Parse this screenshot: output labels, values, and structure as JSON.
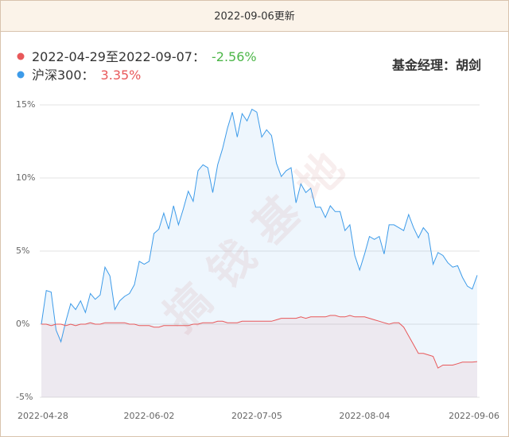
{
  "header": "2022-09-06更新",
  "chart_data": {
    "type": "line",
    "annotations": [
      "基金经理：胡剑",
      "搞钱基地"
    ],
    "categories": [
      "2022-04-28",
      null,
      null,
      null,
      null,
      null,
      null,
      null,
      null,
      null,
      null,
      null,
      null,
      null,
      null,
      null,
      null,
      null,
      null,
      null,
      null,
      null,
      "2022-06-02",
      null,
      null,
      null,
      null,
      null,
      null,
      null,
      null,
      null,
      null,
      null,
      null,
      null,
      null,
      null,
      null,
      null,
      null,
      null,
      null,
      null,
      "2022-07-05",
      null,
      null,
      null,
      null,
      null,
      null,
      null,
      null,
      null,
      null,
      null,
      null,
      null,
      null,
      null,
      null,
      null,
      null,
      null,
      null,
      null,
      "2022-08-04",
      null,
      null,
      null,
      null,
      null,
      null,
      null,
      null,
      null,
      null,
      null,
      null,
      null,
      null,
      null,
      null,
      null,
      null,
      null,
      null,
      null,
      null,
      "2022-09-06"
    ],
    "series": [
      {
        "name": "2022-04-29至2022-09-07：",
        "color": "#e8585a",
        "fill": "rgba(232,88,90,0.08)",
        "summary": {
          "value": -2.56,
          "label": "-2.56%"
        },
        "summary_color": "#4cb648",
        "values": [
          0,
          0,
          -0.1,
          0,
          0,
          -0.1,
          0,
          -0.1,
          0,
          0,
          0.1,
          0,
          0,
          0.1,
          0.1,
          0.1,
          0.1,
          0.1,
          0,
          0,
          -0.1,
          -0.1,
          -0.1,
          -0.2,
          -0.2,
          -0.1,
          -0.1,
          -0.1,
          -0.1,
          -0.1,
          -0.1,
          0,
          0,
          0.1,
          0.1,
          0.1,
          0.2,
          0.2,
          0.1,
          0.1,
          0.1,
          0.2,
          0.2,
          0.2,
          0.2,
          0.2,
          0.2,
          0.2,
          0.3,
          0.4,
          0.4,
          0.4,
          0.4,
          0.5,
          0.4,
          0.5,
          0.5,
          0.5,
          0.5,
          0.6,
          0.6,
          0.5,
          0.5,
          0.6,
          0.5,
          0.5,
          0.5,
          0.4,
          0.3,
          0.2,
          0.1,
          0,
          0.1,
          0.1,
          -0.2,
          -0.8,
          -1.4,
          -2.0,
          -2.0,
          -2.1,
          -2.2,
          -3.0,
          -2.8,
          -2.8,
          -2.8,
          -2.7,
          -2.6,
          -2.6,
          -2.6,
          -2.56
        ]
      },
      {
        "name": "沪深300：",
        "color": "#3d9be9",
        "fill": "rgba(61,155,233,0.09)",
        "summary": {
          "value": 3.35,
          "label": "3.35%"
        },
        "summary_color": "#e8585a",
        "values": [
          0,
          2.3,
          2.2,
          -0.4,
          -1.2,
          0.2,
          1.4,
          1.0,
          1.6,
          0.8,
          2.1,
          1.7,
          2.0,
          3.9,
          3.3,
          1.0,
          1.6,
          1.9,
          2.1,
          2.7,
          4.3,
          4.1,
          4.3,
          6.2,
          6.5,
          7.6,
          6.5,
          8.1,
          6.8,
          7.9,
          9.1,
          8.4,
          10.5,
          10.9,
          10.7,
          9.0,
          10.9,
          12.0,
          13.4,
          14.5,
          12.8,
          14.4,
          13.9,
          14.7,
          14.5,
          12.8,
          13.3,
          12.9,
          11.0,
          10.1,
          10.5,
          10.7,
          8.3,
          9.6,
          9.0,
          9.3,
          8.0,
          8.0,
          7.3,
          8.1,
          7.7,
          7.7,
          6.4,
          6.8,
          4.7,
          3.7,
          4.8,
          6.0,
          5.8,
          6.0,
          4.8,
          6.8,
          6.8,
          6.6,
          6.4,
          7.5,
          6.6,
          5.9,
          6.6,
          6.2,
          4.1,
          4.9,
          4.7,
          4.2,
          3.9,
          4.0,
          3.2,
          2.6,
          2.4,
          3.35
        ]
      }
    ],
    "ylim": [
      -5,
      15
    ],
    "yticks": [
      {
        "value": 15,
        "label": "15%"
      },
      {
        "value": 10,
        "label": "10%"
      },
      {
        "value": 5,
        "label": "5%"
      },
      {
        "value": 0,
        "label": "0%"
      },
      {
        "value": -5,
        "label": "-5%"
      }
    ],
    "grid": true
  }
}
